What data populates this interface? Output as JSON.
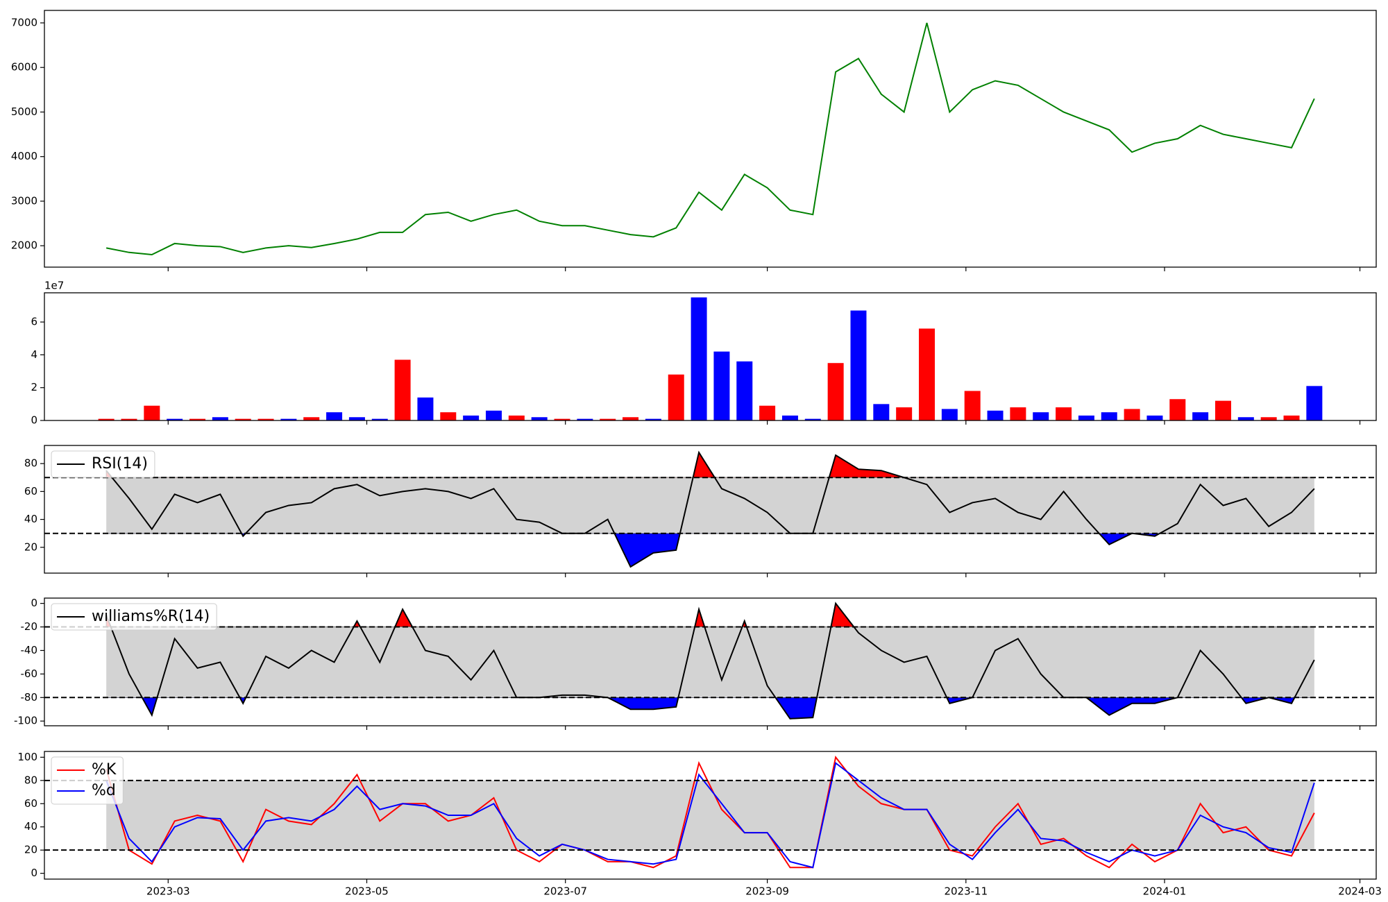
{
  "chart_data": [
    {
      "type": "line",
      "color": "#008000",
      "x": [
        40,
        47,
        54,
        61,
        68,
        75,
        82,
        89,
        96,
        103,
        110,
        117,
        124,
        131,
        138,
        145,
        152,
        159,
        166,
        173,
        180,
        187,
        194,
        201,
        208,
        215,
        222,
        229,
        236,
        243,
        250,
        257,
        264,
        271,
        278,
        285,
        292,
        299,
        306,
        313,
        320,
        327,
        334,
        341,
        348,
        355,
        362,
        369,
        376,
        383,
        390,
        397,
        404,
        411
      ],
      "values": [
        1950,
        1850,
        1800,
        2050,
        2000,
        1980,
        1850,
        1950,
        2000,
        1960,
        2050,
        2150,
        2300,
        2300,
        2700,
        2750,
        2550,
        2700,
        2800,
        2550,
        2450,
        2450,
        2350,
        2250,
        2200,
        2400,
        3200,
        2800,
        3600,
        3300,
        2800,
        2700,
        5900,
        6200,
        5400,
        5000,
        7000,
        5000,
        5500,
        5700,
        5600,
        5300,
        5000,
        4800,
        4600,
        4100,
        4300,
        4400,
        4700,
        4500,
        4400,
        4300,
        4200,
        5300
      ],
      "xlim": [
        21,
        430
      ],
      "ylim": [
        1520,
        7280
      ],
      "yticks": [
        2000,
        3000,
        4000,
        5000,
        6000,
        7000
      ]
    },
    {
      "type": "bar",
      "offset_label": "1e7",
      "x": [
        40,
        47,
        54,
        61,
        68,
        75,
        82,
        89,
        96,
        103,
        110,
        117,
        124,
        131,
        138,
        145,
        152,
        159,
        166,
        173,
        180,
        187,
        194,
        201,
        208,
        215,
        222,
        229,
        236,
        243,
        250,
        257,
        264,
        271,
        278,
        285,
        292,
        299,
        306,
        313,
        320,
        327,
        334,
        341,
        348,
        355,
        362,
        369,
        376,
        383,
        390,
        397,
        404,
        411
      ],
      "values": [
        0.1,
        0.1,
        0.9,
        0.1,
        0.1,
        0.2,
        0.1,
        0.1,
        0.1,
        0.2,
        0.5,
        0.2,
        0.1,
        3.7,
        1.4,
        0.5,
        0.3,
        0.6,
        0.3,
        0.2,
        0.1,
        0.1,
        0.1,
        0.2,
        0.1,
        2.8,
        7.5,
        4.2,
        3.6,
        0.9,
        0.3,
        0.1,
        3.5,
        6.7,
        1.0,
        0.8,
        5.6,
        0.7,
        1.8,
        0.6,
        0.8,
        0.5,
        0.8,
        0.3,
        0.5,
        0.7,
        0.3,
        1.3,
        0.5,
        1.2,
        0.2,
        0.2,
        0.3,
        2.1
      ],
      "colors": [
        "#ff0000",
        "#ff0000",
        "#ff0000",
        "#0000ff",
        "#ff0000",
        "#0000ff",
        "#ff0000",
        "#ff0000",
        "#0000ff",
        "#ff0000",
        "#0000ff",
        "#0000ff",
        "#0000ff",
        "#ff0000",
        "#0000ff",
        "#ff0000",
        "#0000ff",
        "#0000ff",
        "#ff0000",
        "#0000ff",
        "#ff0000",
        "#0000ff",
        "#ff0000",
        "#ff0000",
        "#0000ff",
        "#ff0000",
        "#0000ff",
        "#0000ff",
        "#0000ff",
        "#ff0000",
        "#0000ff",
        "#0000ff",
        "#ff0000",
        "#0000ff",
        "#0000ff",
        "#ff0000",
        "#ff0000",
        "#0000ff",
        "#ff0000",
        "#0000ff",
        "#ff0000",
        "#0000ff",
        "#ff0000",
        "#0000ff",
        "#0000ff",
        "#ff0000",
        "#0000ff",
        "#ff0000",
        "#0000ff",
        "#ff0000",
        "#0000ff",
        "#ff0000",
        "#ff0000",
        "#0000ff"
      ],
      "xlim": [
        21,
        430
      ],
      "ylim": [
        0,
        7.78
      ],
      "yticks": [
        0,
        2,
        4,
        6
      ]
    },
    {
      "type": "line",
      "thresholds": [
        30,
        70
      ],
      "band_color": "#d3d3d3",
      "upper_fill": "#ff0000",
      "lower_fill": "#0000ff",
      "legend": "upper left",
      "x": [
        40,
        47,
        54,
        61,
        68,
        75,
        82,
        89,
        96,
        103,
        110,
        117,
        124,
        131,
        138,
        145,
        152,
        159,
        166,
        173,
        180,
        187,
        194,
        201,
        208,
        215,
        222,
        229,
        236,
        243,
        250,
        257,
        264,
        271,
        278,
        285,
        292,
        299,
        306,
        313,
        320,
        327,
        334,
        341,
        348,
        355,
        362,
        369,
        376,
        383,
        390,
        397,
        404,
        411
      ],
      "series": [
        {
          "name": "RSI(14)",
          "color": "#000000",
          "values": [
            75,
            55,
            33,
            58,
            52,
            58,
            28,
            45,
            50,
            52,
            62,
            65,
            57,
            60,
            62,
            60,
            55,
            62,
            40,
            38,
            30,
            30,
            40,
            6,
            16,
            18,
            88,
            62,
            55,
            45,
            30,
            30,
            86,
            76,
            75,
            70,
            65,
            45,
            52,
            55,
            45,
            40,
            60,
            40,
            22,
            30,
            28,
            37,
            65,
            50,
            55,
            35,
            45,
            62
          ]
        }
      ],
      "xlim": [
        21,
        430
      ],
      "ylim": [
        1.5,
        93
      ],
      "yticks": [
        20,
        40,
        60,
        80
      ]
    },
    {
      "type": "line",
      "thresholds": [
        -80,
        -20
      ],
      "band_color": "#d3d3d3",
      "upper_fill": "#ff0000",
      "lower_fill": "#0000ff",
      "legend": "upper left",
      "x": [
        40,
        47,
        54,
        61,
        68,
        75,
        82,
        89,
        96,
        103,
        110,
        117,
        124,
        131,
        138,
        145,
        152,
        159,
        166,
        173,
        180,
        187,
        194,
        201,
        208,
        215,
        222,
        229,
        236,
        243,
        250,
        257,
        264,
        271,
        278,
        285,
        292,
        299,
        306,
        313,
        320,
        327,
        334,
        341,
        348,
        355,
        362,
        369,
        376,
        383,
        390,
        397,
        404,
        411
      ],
      "series": [
        {
          "name": "williams%R(14)",
          "color": "#000000",
          "values": [
            -10,
            -60,
            -95,
            -30,
            -55,
            -50,
            -85,
            -45,
            -55,
            -40,
            -50,
            -15,
            -50,
            -5,
            -40,
            -45,
            -65,
            -40,
            -80,
            -80,
            -78,
            -78,
            -80,
            -90,
            -90,
            -88,
            -5,
            -65,
            -15,
            -70,
            -98,
            -97,
            0,
            -25,
            -40,
            -50,
            -45,
            -85,
            -80,
            -40,
            -30,
            -60,
            -80,
            -80,
            -95,
            -85,
            -85,
            -80,
            -40,
            -60,
            -85,
            -80,
            -85,
            -48
          ]
        }
      ],
      "xlim": [
        21,
        430
      ],
      "ylim": [
        -104,
        4.5
      ],
      "yticks": [
        0,
        -20,
        -40,
        -60,
        -80,
        -100
      ]
    },
    {
      "type": "line",
      "thresholds": [
        20,
        80
      ],
      "band_color": "#d3d3d3",
      "legend": "upper left",
      "x": [
        40,
        47,
        54,
        61,
        68,
        75,
        82,
        89,
        96,
        103,
        110,
        117,
        124,
        131,
        138,
        145,
        152,
        159,
        166,
        173,
        180,
        187,
        194,
        201,
        208,
        215,
        222,
        229,
        236,
        243,
        250,
        257,
        264,
        271,
        278,
        285,
        292,
        299,
        306,
        313,
        320,
        327,
        334,
        341,
        348,
        355,
        362,
        369,
        376,
        383,
        390,
        397,
        404,
        411
      ],
      "series": [
        {
          "name": "%K",
          "color": "#ff0000",
          "values": [
            90,
            20,
            8,
            45,
            50,
            45,
            10,
            55,
            45,
            42,
            60,
            85,
            45,
            60,
            60,
            45,
            50,
            65,
            20,
            10,
            25,
            20,
            10,
            10,
            5,
            15,
            95,
            55,
            35,
            35,
            5,
            5,
            100,
            75,
            60,
            55,
            55,
            20,
            15,
            40,
            60,
            25,
            30,
            15,
            5,
            25,
            10,
            20,
            60,
            35,
            40,
            20,
            15,
            52
          ]
        },
        {
          "name": "%d",
          "color": "#0000ff",
          "values": [
            80,
            30,
            10,
            40,
            48,
            47,
            20,
            45,
            48,
            45,
            55,
            75,
            55,
            60,
            58,
            50,
            50,
            60,
            30,
            15,
            25,
            20,
            12,
            10,
            8,
            12,
            85,
            60,
            35,
            35,
            10,
            5,
            95,
            80,
            65,
            55,
            55,
            25,
            12,
            35,
            55,
            30,
            28,
            18,
            10,
            20,
            15,
            20,
            50,
            40,
            35,
            22,
            18,
            78
          ]
        }
      ],
      "xlim": [
        21,
        430
      ],
      "ylim": [
        -5,
        105
      ],
      "yticks": [
        0,
        20,
        40,
        60,
        80,
        100
      ],
      "xticks": [
        {
          "value": 59,
          "label": "2023-03"
        },
        {
          "value": 120,
          "label": "2023-05"
        },
        {
          "value": 181,
          "label": "2023-07"
        },
        {
          "value": 243,
          "label": "2023-09"
        },
        {
          "value": 304,
          "label": "2023-11"
        },
        {
          "value": 365,
          "label": "2024-01"
        },
        {
          "value": 425,
          "label": "2024-03"
        }
      ]
    }
  ]
}
